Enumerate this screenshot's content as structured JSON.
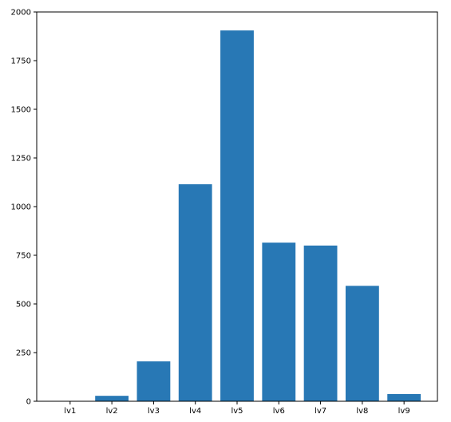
{
  "chart_data": {
    "type": "bar",
    "categories": [
      "lv1",
      "lv2",
      "lv3",
      "lv4",
      "lv5",
      "lv6",
      "lv7",
      "lv8",
      "lv9"
    ],
    "values": [
      1,
      28,
      205,
      1115,
      1905,
      815,
      800,
      593,
      37
    ],
    "ylim": [
      0,
      2000
    ],
    "yticks": [
      0,
      250,
      500,
      750,
      1000,
      1250,
      1500,
      1750,
      2000
    ],
    "title": "",
    "xlabel": "",
    "ylabel": "",
    "grid": false,
    "bar_color": "#2878b5"
  }
}
